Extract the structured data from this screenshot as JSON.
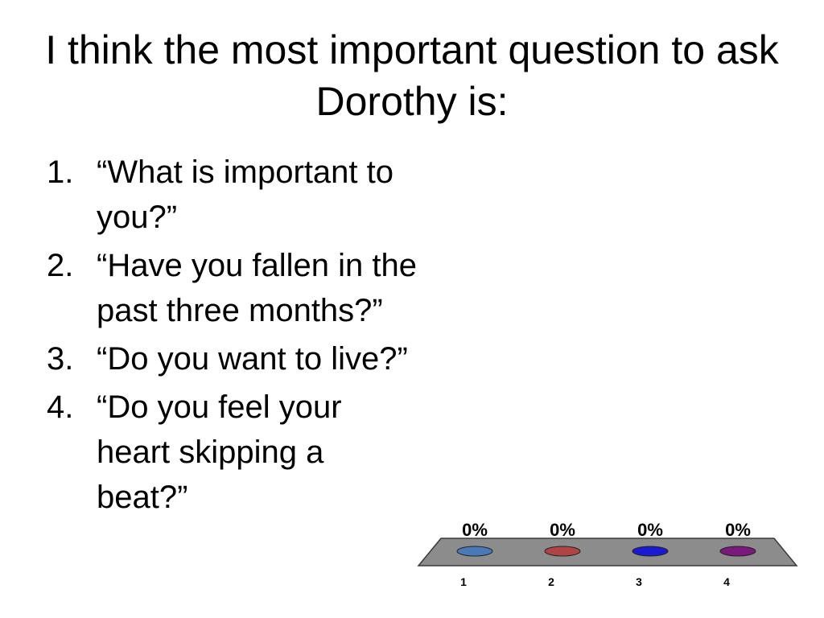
{
  "title": "I think the most important question to ask Dorothy is:",
  "options": [
    {
      "number": "1.",
      "text": "“What is important to you?”"
    },
    {
      "number": "2.",
      "text": "“Have you fallen in the past three months?”"
    },
    {
      "number": "3.",
      "text": "“Do you want to live?”"
    },
    {
      "number": "4.",
      "text": "“Do you feel your heart skipping a beat?”"
    }
  ],
  "chart_data": {
    "type": "bar",
    "categories": [
      "1",
      "2",
      "3",
      "4"
    ],
    "values": [
      0,
      0,
      0,
      0
    ],
    "data_labels": [
      "0%",
      "0%",
      "0%",
      "0%"
    ],
    "colors": [
      "#4a79b8",
      "#b04444",
      "#1a1ad0",
      "#7a1a7a"
    ],
    "unit": "%",
    "grid": false,
    "legend": "none"
  }
}
